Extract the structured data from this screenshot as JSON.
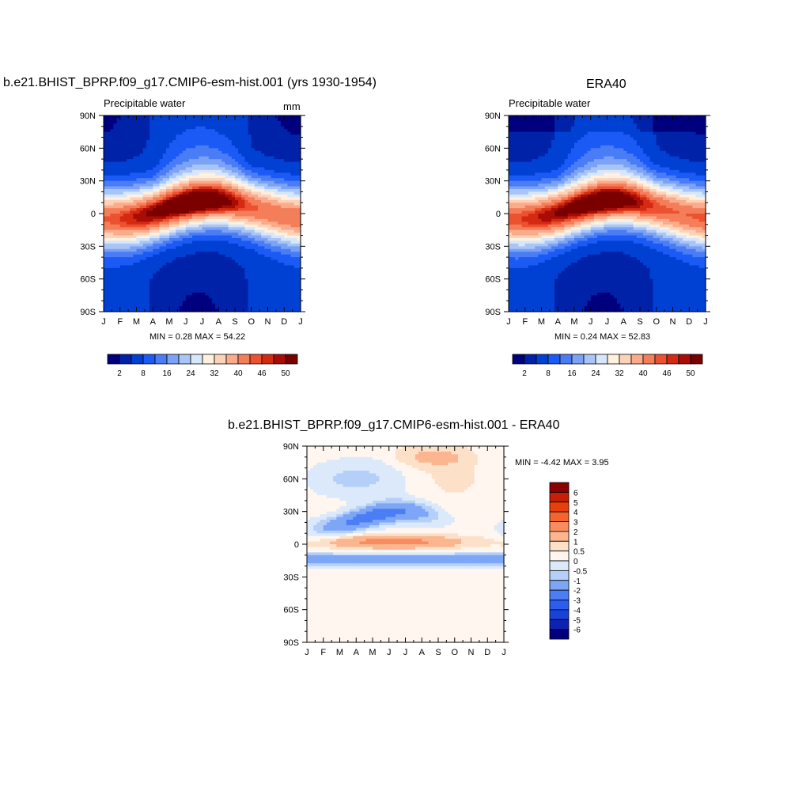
{
  "panels": [
    {
      "title": "b.e21.BHIST_BPRP.f09_g17.CMIP6-esm-hist.001 (yrs 1930-1954)",
      "left_label": "Precipitable water",
      "right_label": "mm",
      "minmax": "MIN =   0.28 MAX =  54.22"
    },
    {
      "title": "ERA40",
      "left_label": "Precipitable water",
      "right_label": "",
      "minmax": "MIN =   0.24 MAX =  52.83"
    },
    {
      "title": "b.e21.BHIST_BPRP.f09_g17.CMIP6-esm-hist.001 - ERA40",
      "left_label": "",
      "right_label": "",
      "minmax": "MIN =  -4.42 MAX =   3.95"
    }
  ],
  "chart_data": [
    {
      "type": "heatmap",
      "title": "b.e21.BHIST_BPRP.f09_g17.CMIP6-esm-hist.001 (yrs 1930-1954)",
      "variable": "Precipitable water",
      "units": "mm",
      "x_tick_labels": [
        "J",
        "F",
        "M",
        "A",
        "M",
        "J",
        "J",
        "A",
        "S",
        "O",
        "N",
        "D",
        "J"
      ],
      "y_tick_labels": [
        "90N",
        "60N",
        "30N",
        "0",
        "30S",
        "60S",
        "90S"
      ],
      "ylim": [
        -90,
        90
      ],
      "min": 0.28,
      "max": 54.22,
      "colorbar_labels": [
        "2",
        "8",
        "16",
        "24",
        "32",
        "40",
        "46",
        "50"
      ],
      "colorbar_levels": [
        2,
        4,
        8,
        12,
        16,
        20,
        24,
        28,
        32,
        36,
        40,
        44,
        46,
        48,
        50
      ],
      "colors": [
        "#00007f",
        "#0022a8",
        "#0040d2",
        "#1c5af5",
        "#4a7df5",
        "#7ba2f5",
        "#a9c5f7",
        "#d6e6fb",
        "#fff0df",
        "#fdd3b8",
        "#fbab8b",
        "#f57e5a",
        "#ec5130",
        "#d42a12",
        "#a80d05",
        "#7a0000"
      ]
    },
    {
      "type": "heatmap",
      "title": "ERA40",
      "variable": "Precipitable water",
      "x_tick_labels": [
        "J",
        "F",
        "M",
        "A",
        "M",
        "J",
        "J",
        "A",
        "S",
        "O",
        "N",
        "D",
        "J"
      ],
      "y_tick_labels": [
        "90N",
        "60N",
        "30N",
        "0",
        "30S",
        "60S",
        "90S"
      ],
      "ylim": [
        -90,
        90
      ],
      "min": 0.24,
      "max": 52.83,
      "colorbar_labels": [
        "2",
        "8",
        "16",
        "24",
        "32",
        "40",
        "46",
        "50"
      ],
      "colors": [
        "#00007f",
        "#0022a8",
        "#0040d2",
        "#1c5af5",
        "#4a7df5",
        "#7ba2f5",
        "#a9c5f7",
        "#d6e6fb",
        "#fff0df",
        "#fdd3b8",
        "#fbab8b",
        "#f57e5a",
        "#ec5130",
        "#d42a12",
        "#a80d05",
        "#7a0000"
      ]
    },
    {
      "type": "heatmap",
      "title": "b.e21.BHIST_BPRP.f09_g17.CMIP6-esm-hist.001 - ERA40",
      "x_tick_labels": [
        "J",
        "F",
        "M",
        "A",
        "M",
        "J",
        "J",
        "A",
        "S",
        "O",
        "N",
        "D",
        "J"
      ],
      "y_tick_labels": [
        "90N",
        "60N",
        "30N",
        "0",
        "30S",
        "60S",
        "90S"
      ],
      "ylim": [
        -90,
        90
      ],
      "min": -4.42,
      "max": 3.95,
      "colorbar_labels": [
        "6",
        "5",
        "4",
        "3",
        "2",
        "1",
        "0.5",
        "0",
        "-0.5",
        "-1",
        "-2",
        "-3",
        "-4",
        "-5",
        "-6"
      ],
      "colors": [
        "#8b0000",
        "#c81e05",
        "#e8400c",
        "#f5642e",
        "#f98c5e",
        "#fbb58f",
        "#fde0c8",
        "#fff7ef",
        "#dbe9fb",
        "#b4cff8",
        "#7ea6f6",
        "#4b7ef4",
        "#2a5ef0",
        "#1842d8",
        "#0d22b0",
        "#00007f"
      ]
    }
  ]
}
